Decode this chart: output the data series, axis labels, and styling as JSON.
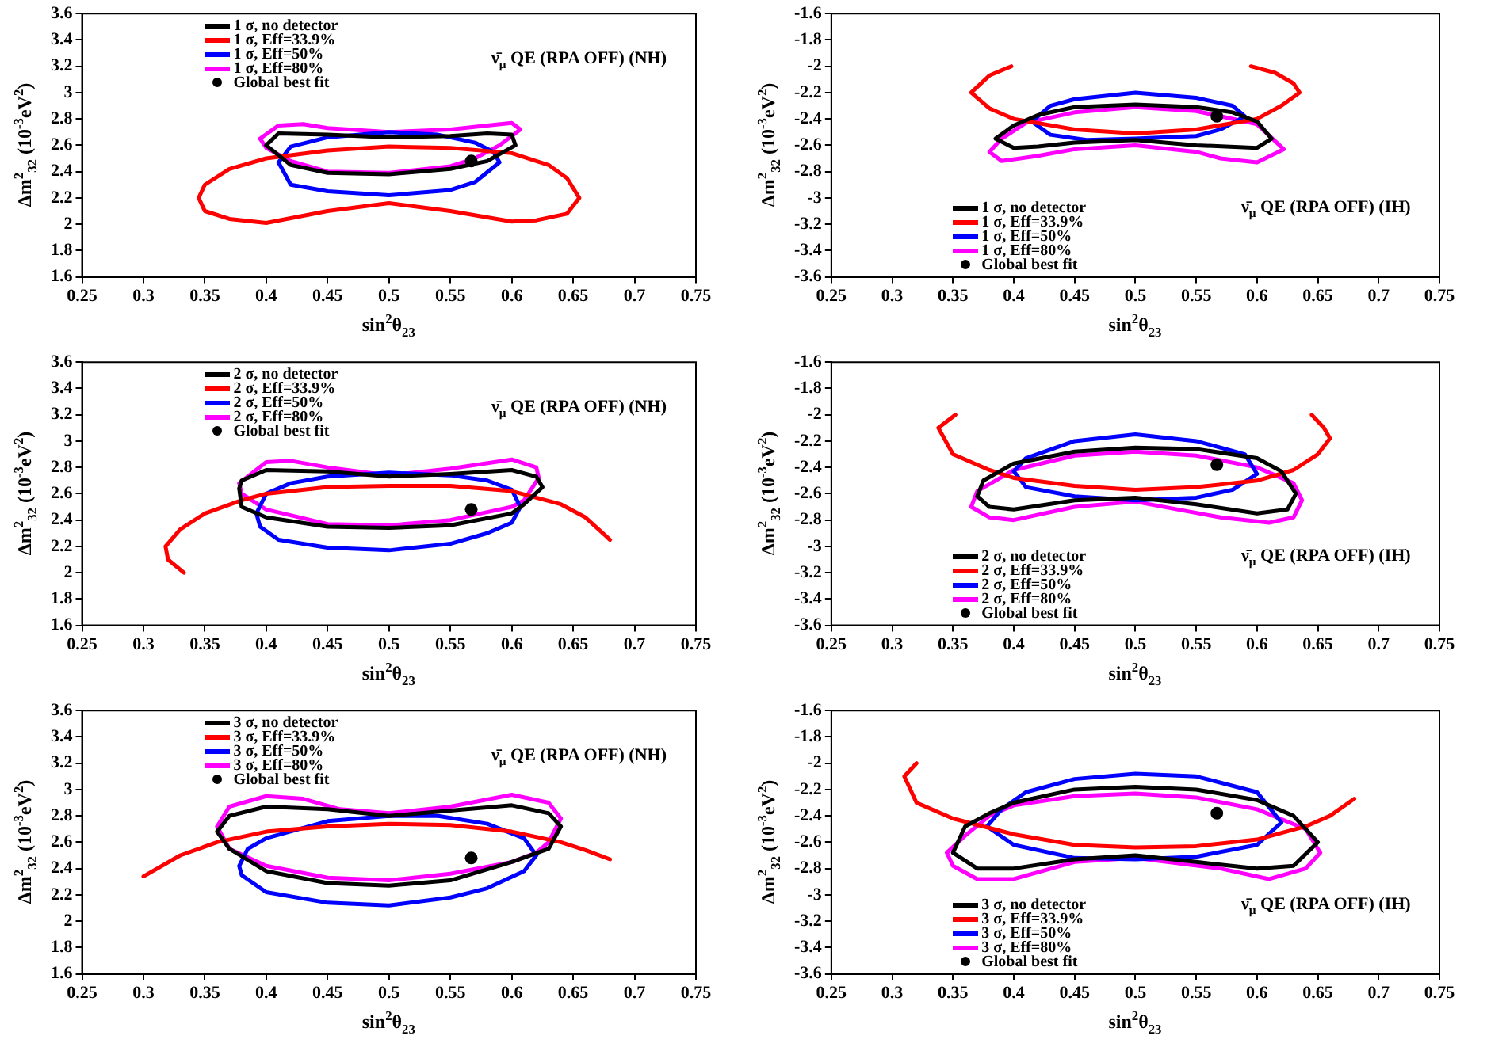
{
  "chart_data": [
    {
      "type": "line",
      "xlabel": "sin$^{2}$θ$_{23}$",
      "ylabel": "Δm$^{2}$$_{32}$ (10$^{-3}$eV$^{2}$)",
      "annotations": [
        "ν̄$_{μ}$ QE (RPA OFF) (NH)"
      ],
      "legend": "top left",
      "xlim": [
        0.25,
        0.75
      ],
      "xticks": [
        0.25,
        0.3,
        0.35,
        0.4,
        0.45,
        0.5,
        0.55,
        0.6,
        0.65,
        0.7,
        0.75
      ],
      "ylim": [
        1.6,
        3.6
      ],
      "yticks": [
        1.6,
        1.8,
        2,
        2.2,
        2.4,
        2.6,
        2.8,
        3,
        3.2,
        3.4,
        3.6
      ],
      "series": [
        {
          "name": "1  σ, no detector",
          "color": "#000000",
          "x": [
            0.4,
            0.41,
            0.45,
            0.5,
            0.55,
            0.58,
            0.6,
            0.603,
            null,
            0.4,
            0.42,
            0.45,
            0.5,
            0.55,
            0.58,
            0.603
          ],
          "values": [
            2.6,
            2.69,
            2.68,
            2.66,
            2.67,
            2.69,
            2.68,
            2.6,
            null,
            2.6,
            2.45,
            2.39,
            2.38,
            2.42,
            2.48,
            2.6
          ]
        },
        {
          "name": "1  σ, Eff=33.9%",
          "color": "#ff0000",
          "x": [
            0.345,
            0.35,
            0.37,
            0.4,
            0.45,
            0.5,
            0.55,
            0.6,
            0.63,
            0.645,
            0.655,
            null,
            0.345,
            0.35,
            0.37,
            0.4,
            0.45,
            0.5,
            0.55,
            0.6,
            0.62,
            0.645,
            0.655
          ],
          "values": [
            2.2,
            2.3,
            2.42,
            2.5,
            2.56,
            2.59,
            2.58,
            2.54,
            2.45,
            2.35,
            2.2,
            null,
            2.2,
            2.1,
            2.04,
            2.01,
            2.1,
            2.16,
            2.1,
            2.02,
            2.03,
            2.08,
            2.2
          ]
        },
        {
          "name": "1  σ, Eff=50%",
          "color": "#0000ff",
          "x": [
            0.41,
            0.42,
            0.45,
            0.5,
            0.54,
            0.57,
            0.585,
            0.59,
            null,
            0.41,
            0.42,
            0.45,
            0.5,
            0.55,
            0.57,
            0.59
          ],
          "values": [
            2.47,
            2.59,
            2.66,
            2.7,
            2.68,
            2.62,
            2.55,
            2.47,
            null,
            2.47,
            2.3,
            2.25,
            2.22,
            2.26,
            2.32,
            2.47
          ]
        },
        {
          "name": "1  σ, Eff=80%",
          "color": "#ff00ff",
          "x": [
            0.395,
            0.41,
            0.43,
            0.45,
            0.5,
            0.55,
            0.58,
            0.6,
            0.607,
            null,
            0.395,
            0.4,
            0.42,
            0.45,
            0.5,
            0.55,
            0.57,
            0.59,
            0.607
          ],
          "values": [
            2.65,
            2.75,
            2.76,
            2.73,
            2.7,
            2.72,
            2.75,
            2.77,
            2.72,
            null,
            2.65,
            2.58,
            2.48,
            2.4,
            2.39,
            2.44,
            2.5,
            2.6,
            2.72
          ]
        },
        {
          "name": "Global best fit",
          "type": "scatter",
          "color": "#000000",
          "x": [
            0.567
          ],
          "values": [
            2.48
          ]
        }
      ]
    },
    {
      "type": "line",
      "xlabel": "sin$^{2}$θ$_{23}$",
      "ylabel": "Δm$^{2}$$_{32}$ (10$^{-3}$eV$^{2}$)",
      "annotations": [
        "ν̄$_{μ}$ QE (RPA OFF) (IH)"
      ],
      "legend": "bottom left",
      "xlim": [
        0.25,
        0.75
      ],
      "xticks": [
        0.25,
        0.3,
        0.35,
        0.4,
        0.45,
        0.5,
        0.55,
        0.6,
        0.65,
        0.7,
        0.75
      ],
      "ylim": [
        -3.6,
        -1.6
      ],
      "yticks": [
        -3.6,
        -3.4,
        -3.2,
        -3,
        -2.8,
        -2.6,
        -2.4,
        -2.2,
        -2,
        -1.8,
        -1.6
      ],
      "series": [
        {
          "name": "1  σ, no detector",
          "color": "#000000",
          "x": [
            0.385,
            0.4,
            0.42,
            0.45,
            0.5,
            0.55,
            0.58,
            0.6,
            0.612,
            null,
            0.385,
            0.4,
            0.42,
            0.45,
            0.5,
            0.55,
            0.6,
            0.612
          ],
          "values": [
            -2.55,
            -2.45,
            -2.37,
            -2.31,
            -2.29,
            -2.31,
            -2.35,
            -2.42,
            -2.55,
            null,
            -2.55,
            -2.62,
            -2.61,
            -2.58,
            -2.56,
            -2.6,
            -2.62,
            -2.55
          ]
        },
        {
          "name": "1  σ, Eff=33.9%",
          "color": "#ff0000",
          "x": [
            0.398,
            0.38,
            0.365,
            0.38,
            0.4,
            0.45,
            0.5,
            0.55,
            0.6,
            0.62,
            0.635,
            0.63,
            0.615,
            0.595
          ],
          "values": [
            -2,
            -2.07,
            -2.2,
            -2.32,
            -2.4,
            -2.48,
            -2.51,
            -2.48,
            -2.4,
            -2.3,
            -2.2,
            -2.13,
            -2.05,
            -2
          ]
        },
        {
          "name": "1  σ, Eff=50%",
          "color": "#0000ff",
          "x": [
            0.415,
            0.43,
            0.45,
            0.5,
            0.55,
            0.58,
            0.59,
            null,
            0.415,
            0.43,
            0.46,
            0.5,
            0.55,
            0.57,
            0.59
          ],
          "values": [
            -2.42,
            -2.3,
            -2.25,
            -2.2,
            -2.24,
            -2.3,
            -2.38,
            null,
            -2.42,
            -2.52,
            -2.56,
            -2.55,
            -2.53,
            -2.48,
            -2.38
          ]
        },
        {
          "name": "1  σ, Eff=80%",
          "color": "#ff00ff",
          "x": [
            0.38,
            0.39,
            0.41,
            0.45,
            0.5,
            0.55,
            0.6,
            0.622,
            null,
            0.38,
            0.39,
            0.42,
            0.45,
            0.5,
            0.55,
            0.57,
            0.6,
            0.622
          ],
          "values": [
            -2.65,
            -2.55,
            -2.43,
            -2.35,
            -2.31,
            -2.34,
            -2.44,
            -2.63,
            null,
            -2.65,
            -2.72,
            -2.68,
            -2.63,
            -2.6,
            -2.65,
            -2.7,
            -2.73,
            -2.63
          ]
        },
        {
          "name": "Global best fit",
          "type": "scatter",
          "color": "#000000",
          "x": [
            0.567
          ],
          "values": [
            -2.38
          ]
        }
      ]
    },
    {
      "type": "line",
      "xlabel": "sin$^{2}$θ$_{23}$",
      "ylabel": "Δm$^{2}$$_{32}$ (10$^{-3}$eV$^{2}$)",
      "annotations": [
        "ν̄$_{μ}$ QE (RPA OFF) (NH)"
      ],
      "legend": "top left",
      "xlim": [
        0.25,
        0.75
      ],
      "xticks": [
        0.25,
        0.3,
        0.35,
        0.4,
        0.45,
        0.5,
        0.55,
        0.6,
        0.65,
        0.7,
        0.75
      ],
      "ylim": [
        1.6,
        3.6
      ],
      "yticks": [
        1.6,
        1.8,
        2,
        2.2,
        2.4,
        2.6,
        2.8,
        3,
        3.2,
        3.4,
        3.6
      ],
      "series": [
        {
          "name": "2  σ, no detector",
          "color": "#000000",
          "x": [
            0.378,
            0.38,
            0.4,
            0.45,
            0.5,
            0.55,
            0.6,
            0.62,
            0.625,
            null,
            0.378,
            0.38,
            0.4,
            0.45,
            0.5,
            0.55,
            0.6,
            0.61,
            0.625
          ],
          "values": [
            2.64,
            2.7,
            2.78,
            2.77,
            2.73,
            2.75,
            2.78,
            2.73,
            2.65,
            null,
            2.64,
            2.5,
            2.42,
            2.35,
            2.34,
            2.36,
            2.45,
            2.52,
            2.65
          ]
        },
        {
          "name": "2  σ, Eff=33.9%",
          "color": "#ff0000",
          "x": [
            0.333,
            0.32,
            0.318,
            0.33,
            0.35,
            0.38,
            0.4,
            0.45,
            0.5,
            0.55,
            0.6,
            0.64,
            0.66,
            0.68
          ],
          "values": [
            2,
            2.1,
            2.2,
            2.33,
            2.45,
            2.55,
            2.6,
            2.65,
            2.66,
            2.66,
            2.62,
            2.52,
            2.42,
            2.25
          ]
        },
        {
          "name": "2  σ, Eff=50%",
          "color": "#0000ff",
          "x": [
            0.392,
            0.4,
            0.42,
            0.45,
            0.5,
            0.55,
            0.58,
            0.6,
            0.607,
            null,
            0.392,
            0.395,
            0.41,
            0.45,
            0.5,
            0.55,
            0.58,
            0.6,
            0.607
          ],
          "values": [
            2.45,
            2.6,
            2.68,
            2.73,
            2.76,
            2.74,
            2.7,
            2.63,
            2.5,
            null,
            2.45,
            2.35,
            2.25,
            2.19,
            2.17,
            2.22,
            2.3,
            2.38,
            2.5
          ]
        },
        {
          "name": "2  σ, Eff=80%",
          "color": "#ff00ff",
          "x": [
            0.378,
            0.4,
            0.42,
            0.45,
            0.5,
            0.55,
            0.6,
            0.62,
            0.622,
            null,
            0.378,
            0.38,
            0.4,
            0.45,
            0.5,
            0.55,
            0.58,
            0.6,
            0.61,
            0.622
          ],
          "values": [
            2.68,
            2.84,
            2.85,
            2.8,
            2.74,
            2.79,
            2.86,
            2.8,
            2.72,
            null,
            2.68,
            2.6,
            2.48,
            2.37,
            2.36,
            2.4,
            2.46,
            2.5,
            2.55,
            2.72
          ]
        },
        {
          "name": "Global best fit",
          "type": "scatter",
          "color": "#000000",
          "x": [
            0.567
          ],
          "values": [
            2.48
          ]
        }
      ]
    },
    {
      "type": "line",
      "xlabel": "sin$^{2}$θ$_{23}$",
      "ylabel": "Δm$^{2}$$_{32}$ (10$^{-3}$eV$^{2}$)",
      "annotations": [
        "ν̄$_{μ}$ QE (RPA OFF) (IH)"
      ],
      "legend": "bottom left",
      "xlim": [
        0.25,
        0.75
      ],
      "xticks": [
        0.25,
        0.3,
        0.35,
        0.4,
        0.45,
        0.5,
        0.55,
        0.6,
        0.65,
        0.7,
        0.75
      ],
      "ylim": [
        -3.6,
        -1.6
      ],
      "yticks": [
        -3.6,
        -3.4,
        -3.2,
        -3,
        -2.8,
        -2.6,
        -2.4,
        -2.2,
        -2,
        -1.8,
        -1.6
      ],
      "series": [
        {
          "name": "2  σ, no detector",
          "color": "#000000",
          "x": [
            0.37,
            0.375,
            0.4,
            0.45,
            0.5,
            0.55,
            0.6,
            0.62,
            0.632,
            null,
            0.37,
            0.38,
            0.4,
            0.45,
            0.5,
            0.55,
            0.6,
            0.625,
            0.632
          ],
          "values": [
            -2.62,
            -2.5,
            -2.37,
            -2.28,
            -2.25,
            -2.26,
            -2.33,
            -2.43,
            -2.6,
            null,
            -2.62,
            -2.7,
            -2.72,
            -2.65,
            -2.63,
            -2.68,
            -2.75,
            -2.72,
            -2.6
          ]
        },
        {
          "name": "2  σ, Eff=33.9%",
          "color": "#ff0000",
          "x": [
            0.352,
            0.338,
            0.35,
            0.38,
            0.4,
            0.45,
            0.5,
            0.55,
            0.6,
            0.63,
            0.65,
            0.66,
            0.655,
            0.645
          ],
          "values": [
            -2,
            -2.1,
            -2.3,
            -2.42,
            -2.48,
            -2.54,
            -2.57,
            -2.55,
            -2.5,
            -2.42,
            -2.3,
            -2.18,
            -2.1,
            -2
          ]
        },
        {
          "name": "2  σ, Eff=50%",
          "color": "#0000ff",
          "x": [
            0.4,
            0.41,
            0.45,
            0.5,
            0.55,
            0.59,
            0.6,
            null,
            0.4,
            0.41,
            0.45,
            0.5,
            0.55,
            0.58,
            0.6
          ],
          "values": [
            -2.43,
            -2.33,
            -2.2,
            -2.15,
            -2.2,
            -2.3,
            -2.45,
            null,
            -2.43,
            -2.55,
            -2.62,
            -2.65,
            -2.63,
            -2.57,
            -2.45
          ]
        },
        {
          "name": "2  σ, Eff=80%",
          "color": "#ff00ff",
          "x": [
            0.365,
            0.37,
            0.4,
            0.45,
            0.5,
            0.55,
            0.6,
            0.63,
            0.637,
            null,
            0.365,
            0.38,
            0.4,
            0.45,
            0.5,
            0.57,
            0.61,
            0.63,
            0.637
          ],
          "values": [
            -2.7,
            -2.58,
            -2.42,
            -2.31,
            -2.28,
            -2.31,
            -2.4,
            -2.52,
            -2.65,
            null,
            -2.7,
            -2.78,
            -2.8,
            -2.7,
            -2.66,
            -2.78,
            -2.82,
            -2.78,
            -2.65
          ]
        },
        {
          "name": "Global best fit",
          "type": "scatter",
          "color": "#000000",
          "x": [
            0.567
          ],
          "values": [
            -2.38
          ]
        }
      ]
    },
    {
      "type": "line",
      "xlabel": "sin$^{2}$θ$_{23}$",
      "ylabel": "Δm$^{2}$$_{32}$ (10$^{-3}$eV$^{2}$)",
      "annotations": [
        "ν̄$_{μ}$ QE (RPA OFF) (NH)"
      ],
      "legend": "top left",
      "xlim": [
        0.25,
        0.75
      ],
      "xticks": [
        0.25,
        0.3,
        0.35,
        0.4,
        0.45,
        0.5,
        0.55,
        0.6,
        0.65,
        0.7,
        0.75
      ],
      "ylim": [
        1.6,
        3.6
      ],
      "yticks": [
        1.6,
        1.8,
        2,
        2.2,
        2.4,
        2.6,
        2.8,
        3,
        3.2,
        3.4,
        3.6
      ],
      "series": [
        {
          "name": "3  σ, no detector",
          "color": "#000000",
          "x": [
            0.36,
            0.37,
            0.4,
            0.45,
            0.5,
            0.55,
            0.6,
            0.63,
            0.64,
            null,
            0.36,
            0.37,
            0.4,
            0.45,
            0.5,
            0.55,
            0.6,
            0.63,
            0.64
          ],
          "values": [
            2.68,
            2.8,
            2.87,
            2.85,
            2.8,
            2.84,
            2.88,
            2.82,
            2.72,
            null,
            2.68,
            2.55,
            2.38,
            2.29,
            2.27,
            2.31,
            2.45,
            2.55,
            2.72
          ]
        },
        {
          "name": "3  σ, Eff=33.9%",
          "color": "#ff0000",
          "x": [
            0.3,
            0.33,
            0.36,
            0.4,
            0.45,
            0.5,
            0.55,
            0.6,
            0.64,
            0.66,
            0.68
          ],
          "values": [
            2.34,
            2.5,
            2.6,
            2.68,
            2.72,
            2.74,
            2.73,
            2.68,
            2.6,
            2.54,
            2.47
          ]
        },
        {
          "name": "3  σ, Eff=50%",
          "color": "#0000ff",
          "x": [
            0.378,
            0.385,
            0.4,
            0.45,
            0.5,
            0.54,
            0.58,
            0.61,
            0.62,
            null,
            0.378,
            0.38,
            0.4,
            0.45,
            0.5,
            0.55,
            0.58,
            0.61,
            0.62
          ],
          "values": [
            2.42,
            2.55,
            2.63,
            2.76,
            2.8,
            2.8,
            2.74,
            2.63,
            2.5,
            null,
            2.42,
            2.35,
            2.22,
            2.14,
            2.12,
            2.18,
            2.25,
            2.38,
            2.5
          ]
        },
        {
          "name": "3  σ, Eff=80%",
          "color": "#ff00ff",
          "x": [
            0.36,
            0.37,
            0.4,
            0.43,
            0.46,
            0.5,
            0.55,
            0.6,
            0.63,
            0.64,
            null,
            0.36,
            0.37,
            0.4,
            0.45,
            0.5,
            0.55,
            0.6,
            0.62,
            0.63,
            0.64
          ],
          "values": [
            2.72,
            2.87,
            2.95,
            2.93,
            2.85,
            2.82,
            2.87,
            2.96,
            2.9,
            2.78,
            null,
            2.72,
            2.55,
            2.42,
            2.33,
            2.31,
            2.36,
            2.45,
            2.52,
            2.6,
            2.78
          ]
        },
        {
          "name": "Global best fit",
          "type": "scatter",
          "color": "#000000",
          "x": [
            0.567
          ],
          "values": [
            2.48
          ]
        }
      ]
    },
    {
      "type": "line",
      "xlabel": "sin$^{2}$θ$_{23}$",
      "ylabel": "Δm$^{2}$$_{32}$ (10$^{-3}$eV$^{2}$)",
      "annotations": [
        "ν̄$_{μ}$ QE (RPA OFF) (IH)"
      ],
      "legend": "bottom left",
      "xlim": [
        0.25,
        0.75
      ],
      "xticks": [
        0.25,
        0.3,
        0.35,
        0.4,
        0.45,
        0.5,
        0.55,
        0.6,
        0.65,
        0.7,
        0.75
      ],
      "ylim": [
        -3.6,
        -1.6
      ],
      "yticks": [
        -3.6,
        -3.4,
        -3.2,
        -3,
        -2.8,
        -2.6,
        -2.4,
        -2.2,
        -2,
        -1.8,
        -1.6
      ],
      "series": [
        {
          "name": "3  σ, no detector",
          "color": "#000000",
          "x": [
            0.35,
            0.36,
            0.38,
            0.4,
            0.45,
            0.5,
            0.55,
            0.6,
            0.63,
            0.65,
            null,
            0.35,
            0.37,
            0.4,
            0.45,
            0.5,
            0.55,
            0.6,
            0.63,
            0.65
          ],
          "values": [
            -2.68,
            -2.48,
            -2.38,
            -2.3,
            -2.2,
            -2.18,
            -2.2,
            -2.28,
            -2.4,
            -2.6,
            null,
            -2.68,
            -2.8,
            -2.8,
            -2.73,
            -2.7,
            -2.75,
            -2.8,
            -2.78,
            -2.6
          ]
        },
        {
          "name": "3  σ, Eff=33.9%",
          "color": "#ff0000",
          "x": [
            0.32,
            0.31,
            0.32,
            0.35,
            0.4,
            0.45,
            0.5,
            0.55,
            0.6,
            0.64,
            0.66,
            0.68
          ],
          "values": [
            -2,
            -2.1,
            -2.3,
            -2.42,
            -2.54,
            -2.62,
            -2.64,
            -2.63,
            -2.58,
            -2.48,
            -2.4,
            -2.27
          ]
        },
        {
          "name": "3  σ, Eff=50%",
          "color": "#0000ff",
          "x": [
            0.378,
            0.39,
            0.41,
            0.45,
            0.5,
            0.55,
            0.6,
            0.62,
            null,
            0.378,
            0.4,
            0.45,
            0.5,
            0.55,
            0.6,
            0.62
          ],
          "values": [
            -2.48,
            -2.35,
            -2.22,
            -2.12,
            -2.08,
            -2.1,
            -2.22,
            -2.45,
            null,
            -2.48,
            -2.62,
            -2.72,
            -2.73,
            -2.71,
            -2.62,
            -2.45
          ]
        },
        {
          "name": "3  σ, Eff=80%",
          "color": "#ff00ff",
          "x": [
            0.345,
            0.36,
            0.38,
            0.4,
            0.45,
            0.5,
            0.55,
            0.6,
            0.64,
            0.652,
            null,
            0.345,
            0.35,
            0.37,
            0.4,
            0.45,
            0.5,
            0.57,
            0.61,
            0.64,
            0.652
          ],
          "values": [
            -2.68,
            -2.55,
            -2.4,
            -2.32,
            -2.25,
            -2.23,
            -2.26,
            -2.35,
            -2.5,
            -2.68,
            null,
            -2.68,
            -2.78,
            -2.88,
            -2.88,
            -2.75,
            -2.72,
            -2.8,
            -2.88,
            -2.8,
            -2.68
          ]
        },
        {
          "name": "Global best fit",
          "type": "scatter",
          "color": "#000000",
          "x": [
            0.567
          ],
          "values": [
            -2.38
          ]
        }
      ]
    }
  ]
}
